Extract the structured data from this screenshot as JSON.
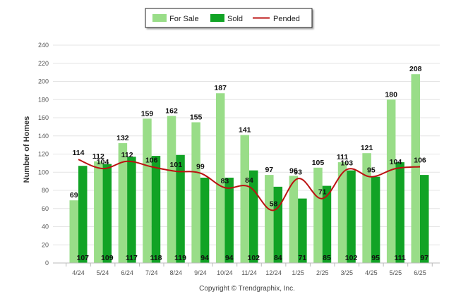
{
  "chart_data": {
    "type": "bar",
    "categories": [
      "4/24",
      "5/24",
      "6/24",
      "7/24",
      "8/24",
      "9/24",
      "10/24",
      "11/24",
      "12/24",
      "1/25",
      "2/25",
      "3/25",
      "4/25",
      "5/25",
      "6/25"
    ],
    "series": [
      {
        "name": "For Sale",
        "kind": "bar",
        "color": "#99dd88",
        "values": [
          69,
          112,
          132,
          159,
          162,
          155,
          187,
          141,
          97,
          96,
          105,
          111,
          121,
          180,
          208
        ]
      },
      {
        "name": "Sold",
        "kind": "bar",
        "color": "#11a325",
        "values": [
          107,
          109,
          117,
          118,
          119,
          94,
          94,
          102,
          84,
          71,
          85,
          102,
          95,
          111,
          97
        ]
      },
      {
        "name": "Pended",
        "kind": "line",
        "color": "#bb1111",
        "values": [
          114,
          104,
          112,
          106,
          101,
          99,
          83,
          84,
          58,
          93,
          71,
          103,
          95,
          104,
          106
        ]
      }
    ],
    "title": "",
    "xlabel": "",
    "ylabel": "Number of Homes",
    "ylim": [
      0,
      240
    ],
    "yticks": [
      0,
      20,
      40,
      60,
      80,
      100,
      120,
      140,
      160,
      180,
      200,
      220,
      240
    ],
    "grid": true,
    "legend": "top-center"
  },
  "footer": {
    "copyright": "Copyright © Trendgraphix, Inc."
  }
}
